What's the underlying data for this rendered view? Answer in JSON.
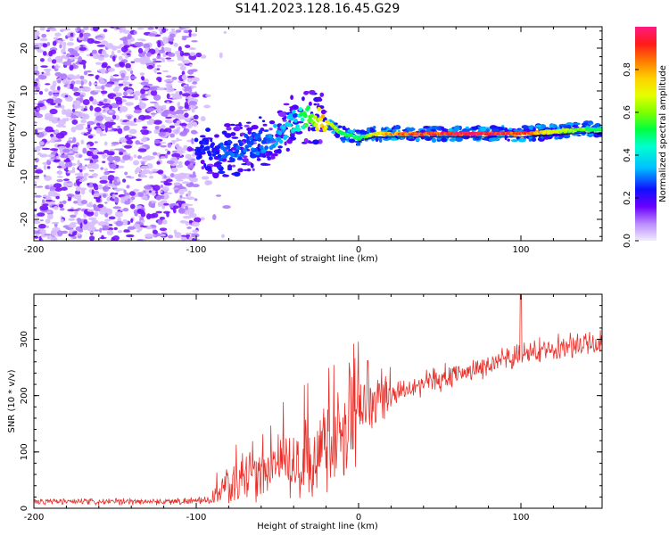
{
  "title": "S141.2023.128.16.45.G29",
  "chart_data": [
    {
      "type": "heatmap",
      "xlabel": "Height of straight line (km)",
      "ylabel": "Frequency (Hz)",
      "xlim": [
        -200,
        150
      ],
      "ylim": [
        -25,
        25
      ],
      "x_ticks": [
        -200,
        -100,
        0,
        100
      ],
      "y_ticks": [
        -20,
        -10,
        0,
        10,
        20
      ],
      "colorbar": {
        "label": "Normalized spectral amplitude",
        "range": [
          0,
          1
        ],
        "ticks": [
          0.0,
          0.2,
          0.4,
          0.6,
          0.8
        ]
      },
      "ridge": {
        "x": [
          -100,
          -90,
          -80,
          -70,
          -60,
          -50,
          -40,
          -30,
          -20,
          -10,
          0,
          10,
          20,
          40,
          60,
          80,
          100,
          120,
          140,
          150
        ],
        "freq": [
          -3,
          -4,
          -4,
          -3,
          -2,
          0,
          3,
          4,
          3,
          0,
          -1,
          0,
          0,
          0,
          0,
          0,
          0,
          0.5,
          1,
          1
        ],
        "amplitude": [
          0.25,
          0.25,
          0.3,
          0.3,
          0.3,
          0.35,
          0.4,
          0.6,
          0.8,
          0.55,
          0.5,
          0.7,
          0.85,
          0.95,
          0.98,
          1.0,
          0.95,
          0.7,
          0.6,
          0.5
        ]
      }
    },
    {
      "type": "line",
      "xlabel": "Height of straight line (km)",
      "ylabel": "SNR (10 * v/v)",
      "xlim": [
        -200,
        150
      ],
      "ylim": [
        0,
        380
      ],
      "x_ticks": [
        -200,
        -100,
        0,
        100
      ],
      "y_ticks": [
        0,
        100,
        200,
        300
      ],
      "color": "#e8302a",
      "series": [
        {
          "x": [
            -200,
            -180,
            -160,
            -140,
            -120,
            -100,
            -90,
            -85,
            -80,
            -70,
            -60,
            -50,
            -40,
            -30,
            -20,
            -10,
            -5,
            0,
            5,
            10,
            20,
            30,
            40,
            50,
            60,
            70,
            80,
            90,
            100,
            110,
            120,
            130,
            140,
            150
          ],
          "y": [
            12,
            12,
            11,
            12,
            12,
            13,
            15,
            30,
            40,
            55,
            60,
            70,
            80,
            90,
            110,
            150,
            165,
            175,
            180,
            195,
            205,
            215,
            222,
            230,
            238,
            245,
            255,
            262,
            272,
            280,
            285,
            290,
            292,
            295
          ]
        }
      ]
    }
  ]
}
